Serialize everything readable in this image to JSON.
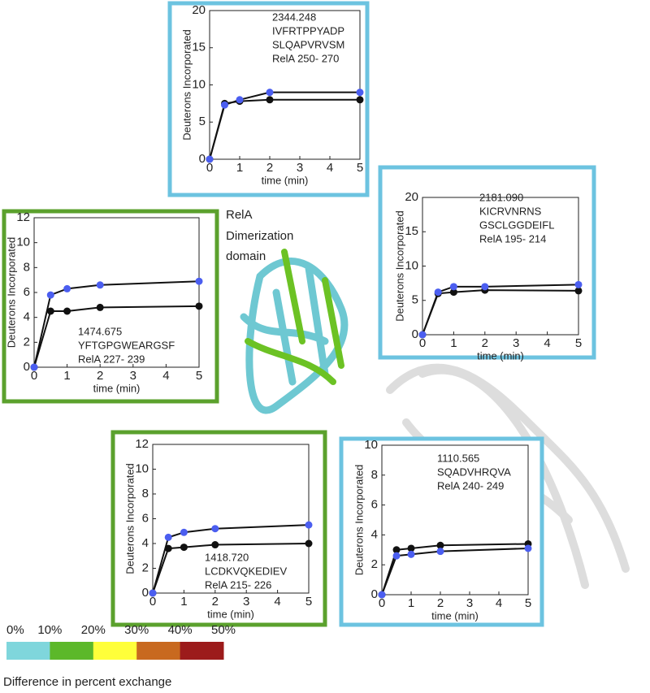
{
  "chart_data": [
    {
      "type": "line",
      "frame_color": "#6cc3e0",
      "annotation": [
        "2344.248",
        "IVFRTPPYADP",
        "SLQAPVRVSM",
        "RelA 250- 270"
      ],
      "xlabel": "time (min)",
      "ylabel": "Deuterons Incorporated",
      "x": [
        0,
        0.5,
        1,
        2,
        5
      ],
      "xlim": [
        0,
        5
      ],
      "xticks": [
        0,
        1,
        2,
        3,
        4,
        5
      ],
      "ylim": [
        0,
        20
      ],
      "yticks": [
        0,
        5,
        10,
        15,
        20
      ],
      "series": [
        {
          "color": "#111111",
          "values": [
            0,
            7.5,
            7.8,
            8.0,
            8.0
          ]
        },
        {
          "color": "#4b5ef0",
          "values": [
            0,
            7.3,
            8.0,
            9.0,
            9.0
          ]
        }
      ]
    },
    {
      "type": "line",
      "frame_color": "#6cc3e0",
      "annotation": [
        "2181.090",
        "KICRVNRNS",
        "GSCLGGDEIFL",
        "RelA 195- 214"
      ],
      "xlabel": "time (min)",
      "ylabel": "Deuterons Incorporated",
      "x": [
        0,
        0.5,
        1,
        2,
        5
      ],
      "xlim": [
        0,
        5
      ],
      "xticks": [
        0,
        1,
        2,
        3,
        4,
        5
      ],
      "ylim": [
        0,
        20
      ],
      "yticks": [
        0,
        5,
        10,
        15,
        20
      ],
      "series": [
        {
          "color": "#111111",
          "values": [
            0,
            6.0,
            6.2,
            6.5,
            6.4
          ]
        },
        {
          "color": "#4b5ef0",
          "values": [
            0,
            6.2,
            7.0,
            7.0,
            7.3
          ]
        }
      ]
    },
    {
      "type": "line",
      "frame_color": "#5ba12d",
      "annotation": [
        "1474.675",
        "YFTGPGWEARGSF",
        "RelA 227- 239"
      ],
      "xlabel": "time (min)",
      "ylabel": "Deuterons Incorporated",
      "x": [
        0,
        0.5,
        1,
        2,
        5
      ],
      "xlim": [
        0,
        5
      ],
      "xticks": [
        0,
        1,
        2,
        3,
        4,
        5
      ],
      "ylim": [
        0,
        12
      ],
      "yticks": [
        0,
        2,
        4,
        6,
        8,
        10,
        12
      ],
      "series": [
        {
          "color": "#111111",
          "values": [
            0,
            4.5,
            4.5,
            4.8,
            4.9
          ]
        },
        {
          "color": "#4b5ef0",
          "values": [
            0,
            5.8,
            6.3,
            6.6,
            6.9
          ]
        }
      ]
    },
    {
      "type": "line",
      "frame_color": "#5ba12d",
      "annotation": [
        "1418.720",
        "LCDKVQKEDIEV",
        "RelA 215- 226"
      ],
      "xlabel": "time (min)",
      "ylabel": "Deuterons Incorporated",
      "x": [
        0,
        0.5,
        1,
        2,
        5
      ],
      "xlim": [
        0,
        5
      ],
      "xticks": [
        0,
        1,
        2,
        3,
        4,
        5
      ],
      "ylim": [
        0,
        12
      ],
      "yticks": [
        0,
        2,
        4,
        6,
        8,
        10,
        12
      ],
      "series": [
        {
          "color": "#111111",
          "values": [
            0,
            3.6,
            3.7,
            3.9,
            4.0
          ]
        },
        {
          "color": "#4b5ef0",
          "values": [
            0,
            4.5,
            4.9,
            5.2,
            5.5
          ]
        }
      ]
    },
    {
      "type": "line",
      "frame_color": "#6cc3e0",
      "annotation": [
        "1110.565",
        "SQADVHRQVA",
        "RelA 240- 249"
      ],
      "xlabel": "time (min)",
      "ylabel": "Deuterons Incorporated",
      "x": [
        0,
        0.5,
        1,
        2,
        5
      ],
      "xlim": [
        0,
        5
      ],
      "xticks": [
        0,
        1,
        2,
        3,
        4,
        5
      ],
      "ylim": [
        0,
        10
      ],
      "yticks": [
        0,
        2,
        4,
        6,
        8,
        10
      ],
      "series": [
        {
          "color": "#111111",
          "values": [
            0,
            3.0,
            3.1,
            3.3,
            3.4
          ]
        },
        {
          "color": "#4b5ef0",
          "values": [
            0,
            2.6,
            2.7,
            2.9,
            3.1
          ]
        }
      ]
    }
  ],
  "structure_label": [
    "RelA",
    "Dimerization",
    "domain"
  ],
  "scale": {
    "labels": [
      "0%",
      "10%",
      "20%",
      "30%",
      "40%",
      "50%"
    ],
    "colors": [
      "#7fd6dc",
      "#5cb82a",
      "#ffff3a",
      "#c8691f",
      "#9c1b1b"
    ],
    "title": "Difference in percent exchange"
  }
}
